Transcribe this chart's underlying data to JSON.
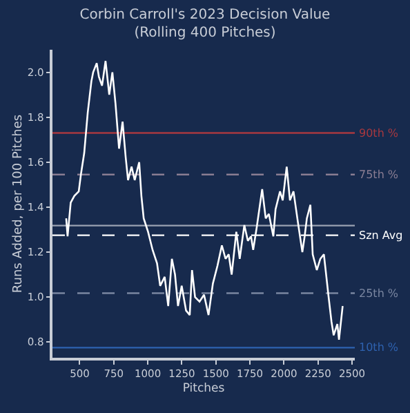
{
  "chart_data": {
    "type": "line",
    "title": "Corbin Carroll's 2023 Decision Value\n(Rolling 400 Pitches)",
    "xlabel": "Pitches",
    "ylabel": "Runs Added, per 100 Pitches",
    "series": [
      {
        "color": "#ffffff",
        "x": [
          401,
          411,
          434,
          461,
          493,
          510,
          533,
          559,
          586,
          599,
          625,
          641,
          664,
          690,
          717,
          740,
          763,
          789,
          815,
          838,
          855,
          881,
          904,
          937,
          953,
          970,
          1002,
          1035,
          1068,
          1091,
          1124,
          1150,
          1177,
          1200,
          1222,
          1249,
          1281,
          1308,
          1325,
          1347,
          1380,
          1413,
          1446,
          1478,
          1512,
          1544,
          1571,
          1594,
          1616,
          1650,
          1675,
          1709,
          1735,
          1758,
          1774,
          1800,
          1840,
          1866,
          1889,
          1922,
          1938,
          1971,
          1991,
          2020,
          2044,
          2070,
          2103,
          2135,
          2152,
          2168,
          2194,
          2211,
          2241,
          2267,
          2293,
          2306,
          2326,
          2349,
          2365,
          2392,
          2404,
          2431
        ],
        "values": [
          1.35,
          1.27,
          1.42,
          1.45,
          1.47,
          1.55,
          1.64,
          1.82,
          1.96,
          2.0,
          2.04,
          1.98,
          1.94,
          2.05,
          1.9,
          2.0,
          1.86,
          1.66,
          1.78,
          1.62,
          1.52,
          1.58,
          1.52,
          1.6,
          1.45,
          1.35,
          1.29,
          1.21,
          1.15,
          1.05,
          1.09,
          0.96,
          1.17,
          1.1,
          0.96,
          1.05,
          0.94,
          0.92,
          1.12,
          1.0,
          0.98,
          1.01,
          0.92,
          1.06,
          1.14,
          1.23,
          1.17,
          1.19,
          1.1,
          1.29,
          1.17,
          1.32,
          1.25,
          1.27,
          1.21,
          1.31,
          1.48,
          1.35,
          1.37,
          1.27,
          1.39,
          1.47,
          1.43,
          1.58,
          1.43,
          1.47,
          1.33,
          1.2,
          1.27,
          1.35,
          1.41,
          1.19,
          1.12,
          1.17,
          1.19,
          1.12,
          1.01,
          0.89,
          0.83,
          0.88,
          0.81,
          0.96
        ]
      }
    ],
    "xlim": [
      300,
      2520
    ],
    "xticks": [
      500,
      750,
      1000,
      1250,
      1500,
      1750,
      2000,
      2250,
      2500
    ],
    "ylim": [
      0.73,
      2.1
    ],
    "yticks": [
      0.8,
      {
        "value": 1,
        "label": "1.0"
      },
      1.2,
      1.4,
      1.6,
      1.8,
      {
        "value": 2,
        "label": "2.0"
      }
    ],
    "ref_lines": [
      {
        "axis": "y",
        "value": 1.73,
        "label": "90th %",
        "color": "#a8383f",
        "line_style": "solid"
      },
      {
        "axis": "y",
        "value": 1.545,
        "label": "75th %",
        "color": "#8a7d92",
        "line_style": "dashed"
      },
      {
        "axis": "y",
        "value": 1.318,
        "label": null,
        "color": "#9aa2b2",
        "line_style": "solid"
      },
      {
        "axis": "y",
        "value": 1.275,
        "label": "Szn Avg",
        "color": "#ffffff",
        "line_style": "dashed"
      },
      {
        "axis": "y",
        "value": 1.017,
        "label": "25th %",
        "color": "#7a86a0",
        "line_style": "dashed"
      },
      {
        "axis": "y",
        "value": 0.775,
        "label": "10th %",
        "color": "#2e62b0",
        "line_style": "solid"
      }
    ],
    "grid": false,
    "marker": "none",
    "line_style": "solid"
  }
}
